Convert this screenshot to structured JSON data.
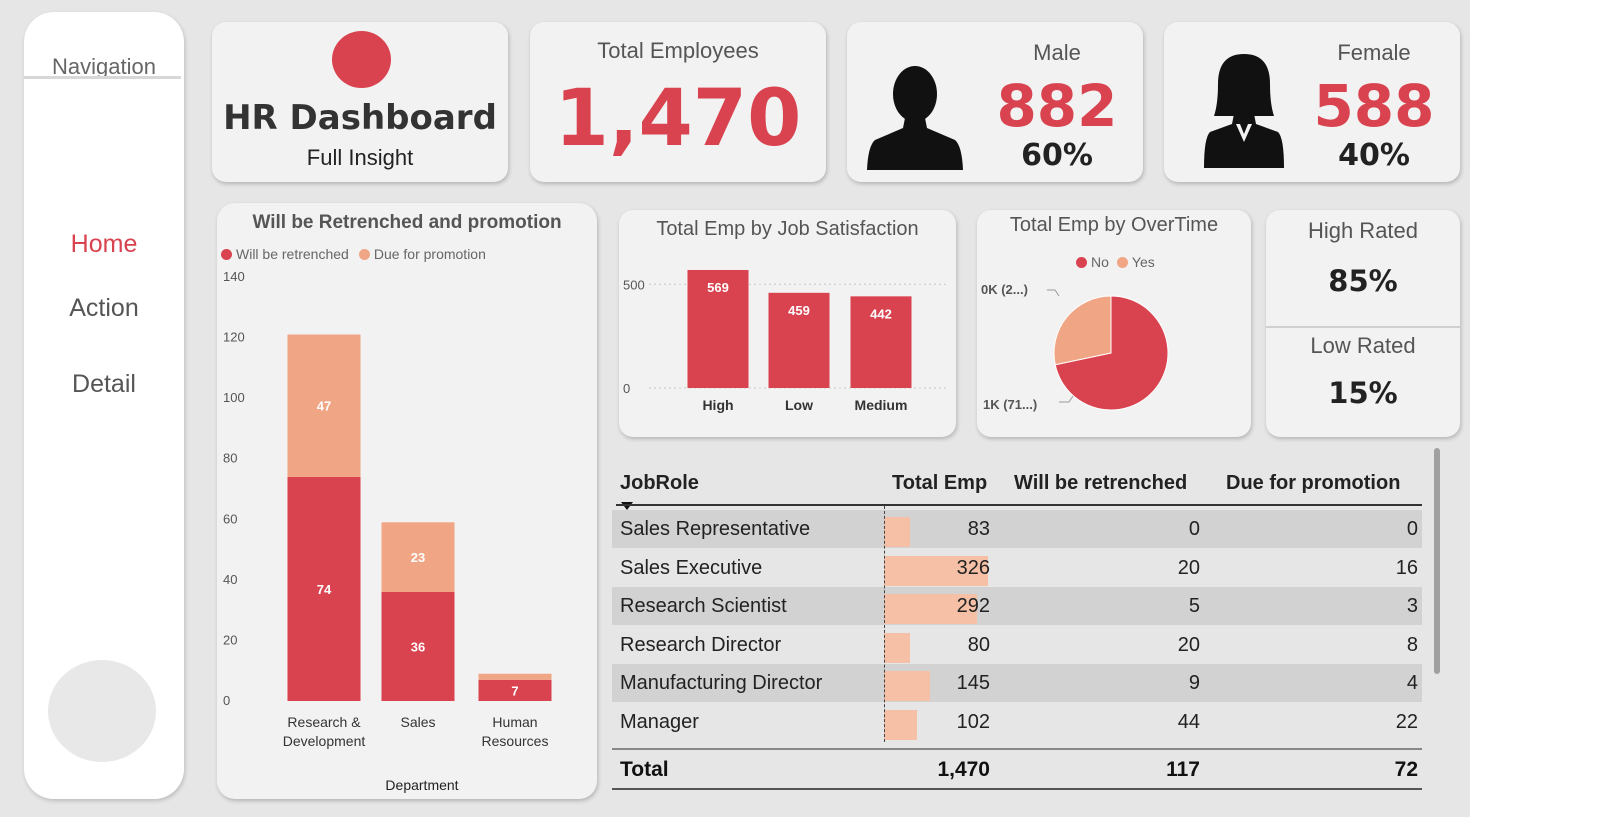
{
  "colors": {
    "accent": "#d9434f",
    "secondary": "#f0a584",
    "table_bar": "#f5c0a6"
  },
  "nav": {
    "title": "Navigation",
    "items": [
      {
        "label": "Home",
        "active": true
      },
      {
        "label": "Action",
        "active": false
      },
      {
        "label": "Detail",
        "active": false
      }
    ]
  },
  "header": {
    "title": "HR Dashboard",
    "subtitle": "Full Insight"
  },
  "kpis": {
    "total": {
      "label": "Total Employees",
      "value": "1,470"
    },
    "male": {
      "label": "Male",
      "value": "882",
      "pct": "60%",
      "icon": "male-person-icon"
    },
    "female": {
      "label": "Female",
      "value": "588",
      "pct": "40%",
      "icon": "female-person-icon"
    }
  },
  "rating": {
    "high_label": "High Rated",
    "high_value": "85%",
    "low_label": "Low Rated",
    "low_value": "15%"
  },
  "chart_data": [
    {
      "type": "bar",
      "stacked": true,
      "title": "Will be Retrenched and promotion",
      "xlabel": "Department",
      "ylabel": "",
      "categories": [
        "Research & Development",
        "Sales",
        "Human Resources"
      ],
      "category_lines": [
        [
          "Research &",
          "Development"
        ],
        [
          "Sales"
        ],
        [
          "Human",
          "Resources"
        ]
      ],
      "series": [
        {
          "name": "Will be retrenched",
          "values": [
            74,
            36,
            7
          ],
          "color": "#d9434f"
        },
        {
          "name": "Due for promotion",
          "values": [
            47,
            23,
            2
          ],
          "color": "#f0a584"
        }
      ],
      "ylim": [
        0,
        140
      ],
      "yticks": [
        0,
        20,
        40,
        60,
        80,
        100,
        120,
        140
      ],
      "legend": "top-left",
      "grid": false
    },
    {
      "type": "bar",
      "title": "Total Emp by Job Satisfaction",
      "categories": [
        "High",
        "Low",
        "Medium"
      ],
      "values": [
        569,
        459,
        442
      ],
      "ylim": [
        0,
        580
      ],
      "yticks": [
        0,
        500
      ],
      "grid": true
    },
    {
      "type": "pie",
      "title": "Total Emp by OverTime",
      "labels": [
        "No",
        "Yes"
      ],
      "values": [
        1054,
        416
      ],
      "colors": [
        "#d9434f",
        "#f0a584"
      ],
      "data_labels": [
        "1K (71...)",
        "0K (2...)"
      ],
      "legend": "top"
    }
  ],
  "table": {
    "columns": [
      "JobRole",
      "Total Emp",
      "Will be retrenched",
      "Due for promotion"
    ],
    "rows": [
      [
        "Sales Representative",
        "83",
        "0",
        "0"
      ],
      [
        "Sales Executive",
        "326",
        "20",
        "16"
      ],
      [
        "Research Scientist",
        "292",
        "5",
        "3"
      ],
      [
        "Research Director",
        "80",
        "20",
        "8"
      ],
      [
        "Manufacturing Director",
        "145",
        "9",
        "4"
      ],
      [
        "Manager",
        "102",
        "44",
        "22"
      ]
    ],
    "total_emp_values": [
      83,
      326,
      292,
      80,
      145,
      102
    ],
    "total": [
      "Total",
      "1,470",
      "117",
      "72"
    ]
  }
}
